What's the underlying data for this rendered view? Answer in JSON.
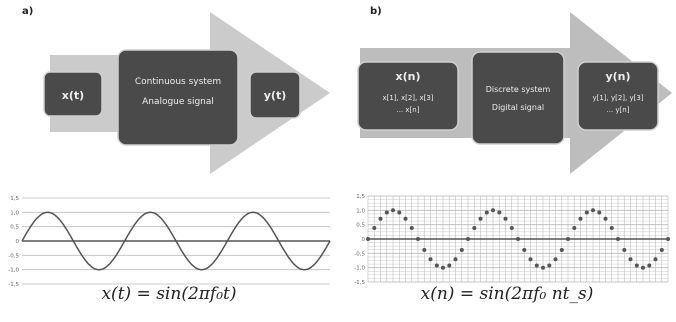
{
  "panel_a": {
    "letter": "a)",
    "input_box": "x(t)",
    "system_line1": "Continuous system",
    "system_line2": "Analogue signal",
    "output_box": "y(t)",
    "formula": "x(t) = sin(2πf₀t)"
  },
  "panel_b": {
    "letter": "b)",
    "input_title": "x(n)",
    "input_line1": "x[1], x[2], x[3]",
    "input_line2": "... x[n]",
    "system_line1": "Discrete system",
    "system_line2": "Digital signal",
    "output_title": "y(n)",
    "output_line1": "y[1], y[2], y[3]",
    "output_line2": "... y[n]",
    "formula": "x(n) = sin(2πf₀ nt_s)"
  },
  "chart_data": [
    {
      "type": "line",
      "function": "sin",
      "cycles": 3,
      "ylim": [
        -1.5,
        1.5
      ],
      "yticks": [
        "1,5",
        "1,0",
        "0,5",
        "0",
        "-0,5",
        "-1,0",
        "-1,5"
      ],
      "grid": true,
      "color": "#555555"
    },
    {
      "type": "scatter",
      "function": "sin",
      "cycles": 3,
      "samples_per_cycle": 16,
      "ylim": [
        -1.5,
        1.5
      ],
      "yticks": [
        "1,5",
        "1,0",
        "0,5",
        "0",
        "-0,5",
        "-1,0",
        "-1,5"
      ],
      "grid": true,
      "color": "#555555"
    }
  ],
  "colors": {
    "box": "#4a4a4a",
    "box_border": "#cfcfcf",
    "arrow_a": "#cbcbcb",
    "arrow_b": "#bdbdbd",
    "grid": "#bdbdbd",
    "axis": "#555555"
  }
}
